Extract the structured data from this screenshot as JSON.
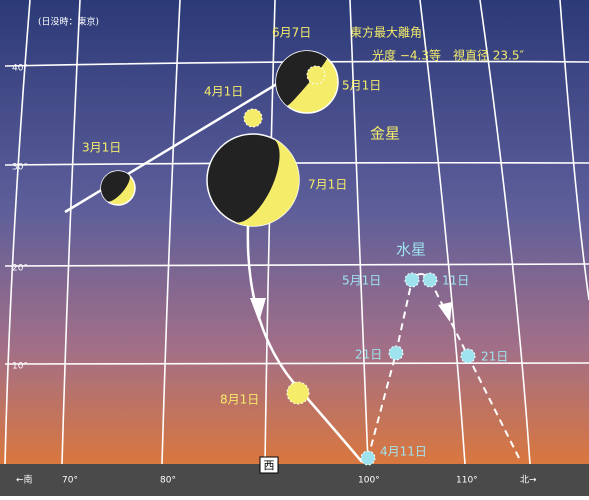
{
  "note_time": "(日没時：東京)",
  "venus": {
    "name": "金星",
    "elongation_date": "6月7日",
    "elongation_title": "東方最大離角",
    "elongation_detail": "光度 −4.3等　視直径 23.5″",
    "dates": [
      "3月1日",
      "4月1日",
      "5月1日",
      "7月1日",
      "8月1日"
    ]
  },
  "mercury": {
    "name": "水星",
    "dates": [
      "4月11日",
      "21日",
      "5月1日",
      "11日",
      "21日"
    ]
  },
  "axes": {
    "altitude_labels": [
      "40°",
      "30°",
      "20°",
      "10°"
    ],
    "azimuth_labels": [
      "←南",
      "70°",
      "80°",
      "西",
      "100°",
      "110°",
      "北→"
    ]
  }
}
